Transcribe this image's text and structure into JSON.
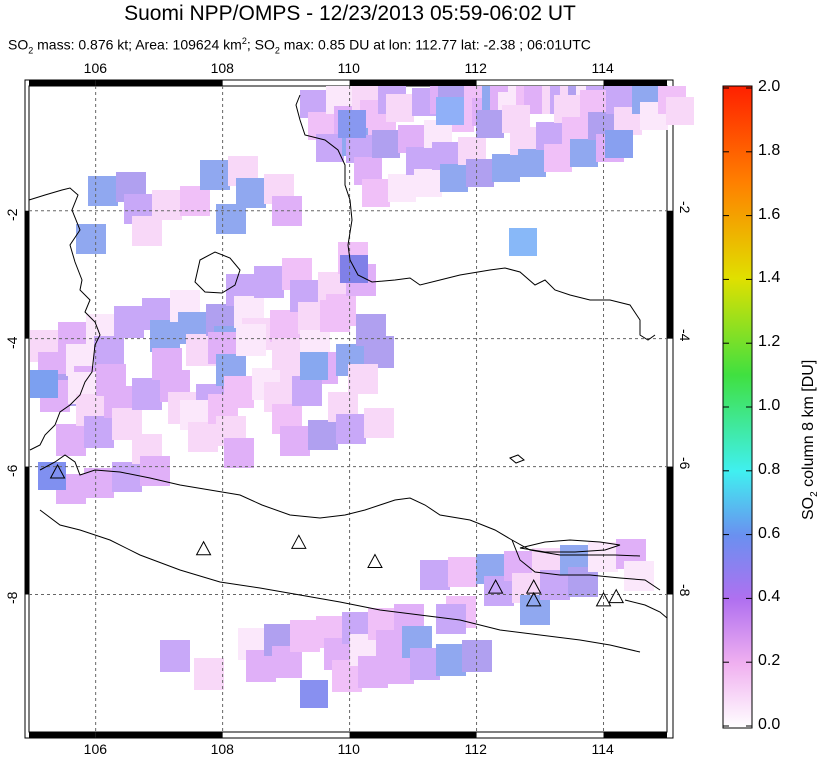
{
  "title": "Suomi NPP/OMPS - 12/23/2013 05:59-06:02 UT",
  "subtitle": {
    "so2_mass_label": "SO",
    "so2_mass_rest": " mass: 0.876 kt; Area: 109624 km",
    "area_sup": "2",
    "so2_max_label": "; SO",
    "so2_max_rest": " max: 0.85 DU at lon: 112.77 lat: -2.38 ; 06:01UTC"
  },
  "map": {
    "lon_labels": [
      "106",
      "108",
      "110",
      "112",
      "114"
    ],
    "lat_labels": [
      "-2",
      "-4",
      "-6",
      "-8"
    ],
    "volcano_icon": "triangle-outline",
    "volcanoes": [
      {
        "lon": 105.4,
        "lat": -6.1
      },
      {
        "lon": 107.7,
        "lat": -7.3
      },
      {
        "lon": 109.2,
        "lat": -7.2
      },
      {
        "lon": 110.4,
        "lat": -7.5
      },
      {
        "lon": 112.3,
        "lat": -7.9
      },
      {
        "lon": 112.9,
        "lat": -7.9
      },
      {
        "lon": 112.9,
        "lat": -8.1
      },
      {
        "lon": 114.0,
        "lat": -8.1
      },
      {
        "lon": 114.2,
        "lat": -8.05
      }
    ]
  },
  "colorbar": {
    "labels": [
      "2.0",
      "1.8",
      "1.6",
      "1.4",
      "1.2",
      "1.0",
      "0.8",
      "0.6",
      "0.4",
      "0.2",
      "0.0"
    ],
    "title_prefix": "SO",
    "title_sub": "2",
    "title_rest": " column 8 km [DU]",
    "colors": [
      "#ff2000",
      "#ff8000",
      "#e0e000",
      "#40e040",
      "#40f0f0",
      "#7080f0",
      "#c080f0",
      "#f0b0f0",
      "#ffffff"
    ]
  }
}
